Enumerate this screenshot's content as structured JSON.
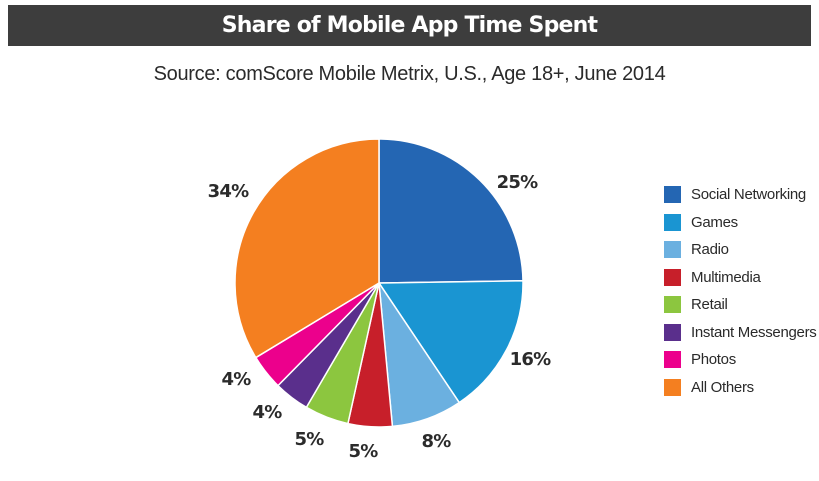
{
  "chart_data": {
    "type": "pie",
    "title": "Share of Mobile App Time Spent",
    "subtitle": "Source: comScore Mobile Metrix, U.S., Age 18+, June 2014",
    "legend_position": "right",
    "unit": "%",
    "slices": [
      {
        "name": "Social Networking",
        "value": 25,
        "label": "25%",
        "color": "#2466b3"
      },
      {
        "name": "Games",
        "value": 16,
        "label": "16%",
        "color": "#1a95d2"
      },
      {
        "name": "Radio",
        "value": 8,
        "label": "8%",
        "color": "#6bb0e0"
      },
      {
        "name": "Multimedia",
        "value": 5,
        "label": "5%",
        "color": "#c71f2a"
      },
      {
        "name": "Retail",
        "value": 5,
        "label": "5%",
        "color": "#8cc63f"
      },
      {
        "name": "Instant Messengers",
        "value": 4,
        "label": "4%",
        "color": "#5a2f8c"
      },
      {
        "name": "Photos",
        "value": 4,
        "label": "4%",
        "color": "#ec008c"
      },
      {
        "name": "All Others",
        "value": 34,
        "label": "34%",
        "color": "#f47f20"
      }
    ]
  }
}
